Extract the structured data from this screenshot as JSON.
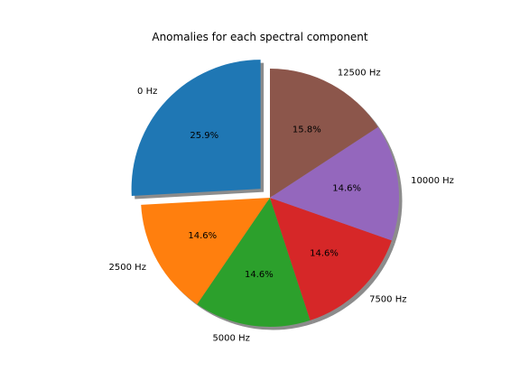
{
  "chart_data": {
    "type": "pie",
    "title": "Anomalies for each spectral component",
    "categories": [
      "0 Hz",
      "2500 Hz",
      "5000 Hz",
      "7500 Hz",
      "10000 Hz",
      "12500 Hz"
    ],
    "values": [
      25.9,
      14.6,
      14.6,
      14.6,
      14.6,
      15.8
    ],
    "percent_labels": [
      "25.9%",
      "14.6%",
      "14.6%",
      "14.6%",
      "14.6%",
      "15.8%"
    ],
    "colors": [
      "#1f77b4",
      "#ff7f0e",
      "#2ca02c",
      "#d62728",
      "#9467bd",
      "#8c564b"
    ],
    "explode": [
      0.1,
      0,
      0,
      0,
      0,
      0
    ],
    "shadow": true,
    "start_angle_deg": 90,
    "legend": false
  }
}
